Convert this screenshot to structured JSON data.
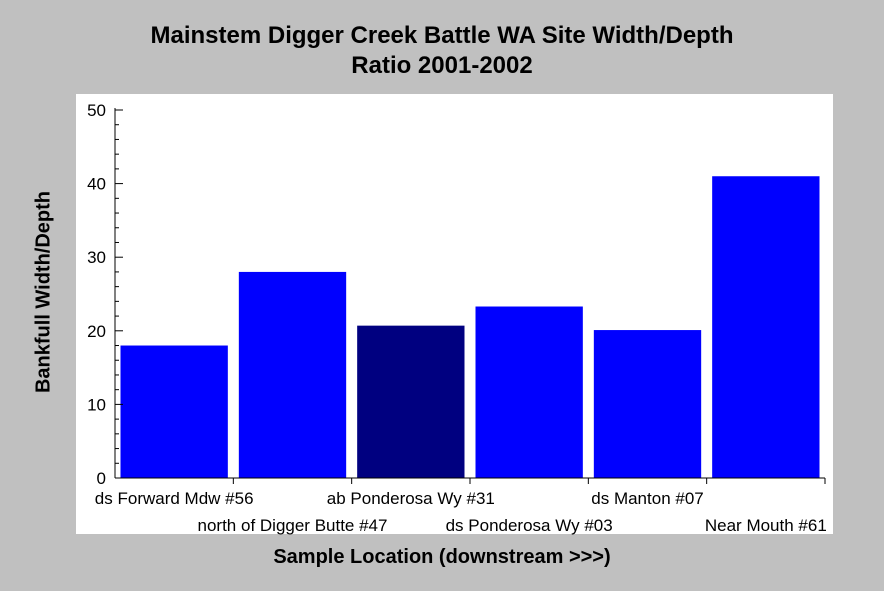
{
  "chart_data": {
    "type": "bar",
    "title_line1": "Mainstem Digger Creek Battle WA Site Width/Depth",
    "title_line2": "Ratio 2001-2002",
    "xlabel": "Sample Location (downstream >>>)",
    "ylabel": "Bankfull Width/Depth",
    "ylim": [
      0,
      50
    ],
    "yticks": [
      "0",
      "10",
      "20",
      "30",
      "40",
      "50"
    ],
    "categories": [
      "ds Forward Mdw #56",
      "north of Digger Butte #47",
      "ab Ponderosa Wy #31",
      "ds Ponderosa Wy #03",
      "ds Manton #07",
      "Near Mouth #61"
    ],
    "values": [
      18,
      28,
      20.7,
      23.3,
      20.1,
      41
    ],
    "bar_colors": [
      "#0000ff",
      "#0000ff",
      "#000080",
      "#0000ff",
      "#0000ff",
      "#0000ff"
    ],
    "grid": false
  }
}
